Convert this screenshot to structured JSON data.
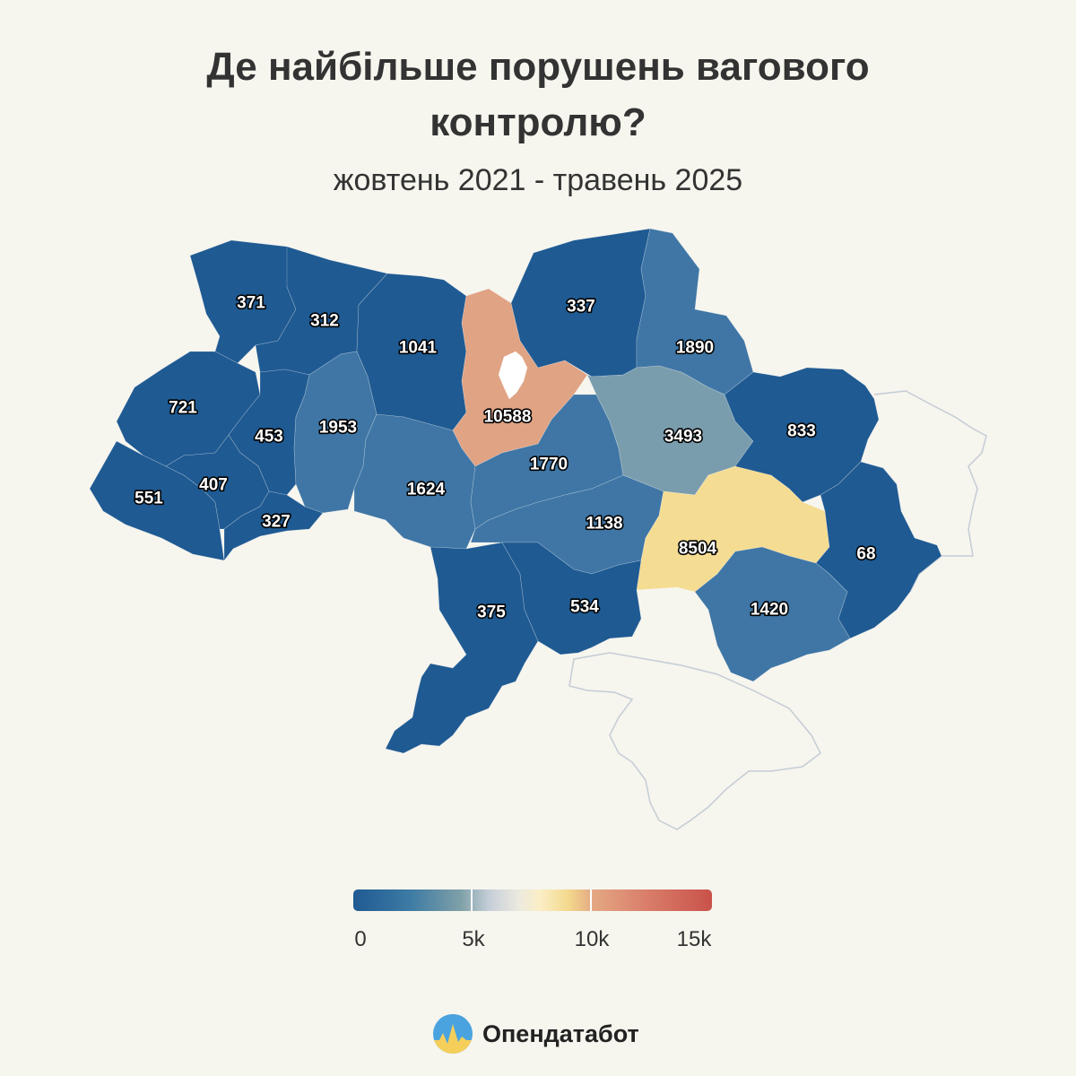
{
  "header": {
    "title_line1": "Де найбільше порушень вагового",
    "title_line2": "контролю?",
    "subtitle": "жовтень 2021 - травень 2025"
  },
  "map": {
    "regions": [
      {
        "id": "volynska",
        "value": 371
      },
      {
        "id": "rivnenska",
        "value": 312
      },
      {
        "id": "zhytomyrska",
        "value": 1041
      },
      {
        "id": "kyivska",
        "value": 10588
      },
      {
        "id": "chernihivska",
        "value": 337
      },
      {
        "id": "sumska",
        "value": 1890
      },
      {
        "id": "lvivska",
        "value": 721
      },
      {
        "id": "ternopilska",
        "value": 453
      },
      {
        "id": "khmelnytska",
        "value": 1953
      },
      {
        "id": "vinnytska",
        "value": 1624
      },
      {
        "id": "cherkaska",
        "value": 1770
      },
      {
        "id": "poltavska",
        "value": 3493
      },
      {
        "id": "kharkivska",
        "value": 833
      },
      {
        "id": "zakarpatska",
        "value": 551
      },
      {
        "id": "ivano-frankivska",
        "value": 407
      },
      {
        "id": "chernivetska",
        "value": 327
      },
      {
        "id": "kirovohradska",
        "value": 1138
      },
      {
        "id": "dnipropetrovska",
        "value": 8504
      },
      {
        "id": "donetska",
        "value": 68
      },
      {
        "id": "odeska",
        "value": 375
      },
      {
        "id": "mykolaivska",
        "value": 534
      },
      {
        "id": "zaporizka",
        "value": 1420
      }
    ],
    "colors": {
      "dark_blue": "#1f5a92",
      "mid_blue": "#3f76a5",
      "steel": "#7a9dad",
      "yellow": "#f5dc93",
      "salmon": "#e0a384",
      "occupied_outline": "#c5ccd6",
      "kyiv_city": "#ffffff"
    }
  },
  "legend": {
    "labels": [
      "0",
      "5k",
      "10k",
      "15k"
    ],
    "min": 0,
    "max": 15000
  },
  "brand": {
    "name": "Опендатабот",
    "logo_icon": "opendatabot-logo-icon"
  }
}
